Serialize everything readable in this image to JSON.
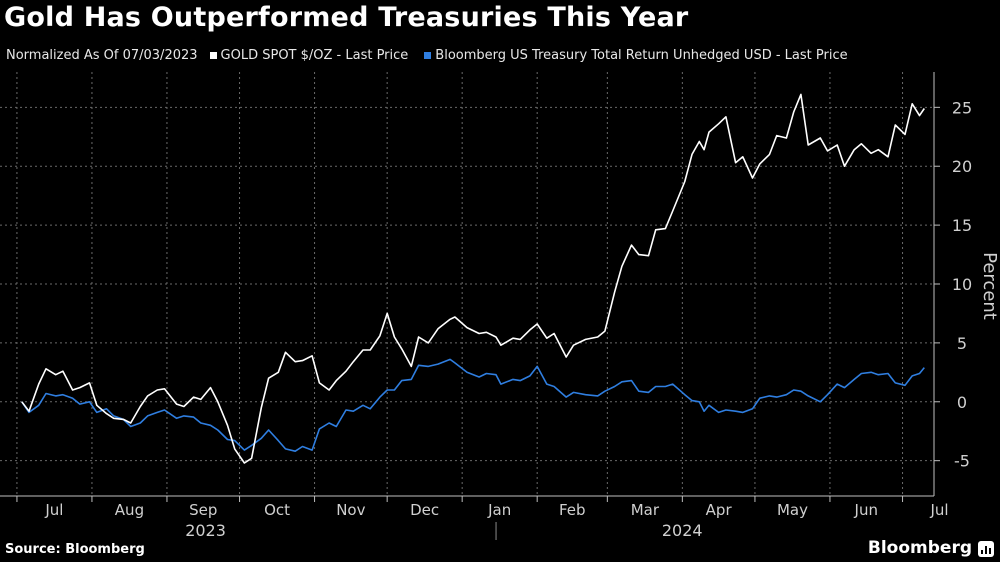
{
  "title": "Gold Has Outperformed Treasuries This Year",
  "legend": {
    "note": "Normalized As Of 07/03/2023",
    "gold_label": "GOLD SPOT $/OZ - Last Price",
    "treasury_label": "Bloomberg US Treasury Total Return Unhedged USD - Last Price"
  },
  "source": "Source: Bloomberg",
  "brand": "Bloomberg",
  "colors": {
    "background": "#000000",
    "gold": "#ffffff",
    "treasury": "#2f7ee0",
    "grid": "#6a6a6a",
    "axis_text": "#d0d0d0"
  },
  "chart_data": {
    "type": "line",
    "ylabel": "Percent",
    "ylim": [
      -8,
      28
    ],
    "yticks": [
      -5,
      0,
      5,
      10,
      15,
      20,
      25
    ],
    "grid": true,
    "x_range": [
      "2023-06-24",
      "2024-07-14"
    ],
    "month_ticks": [
      {
        "label": "Jul",
        "date": "2023-07-01"
      },
      {
        "label": "Aug",
        "date": "2023-08-01"
      },
      {
        "label": "Sep",
        "date": "2023-09-01"
      },
      {
        "label": "Oct",
        "date": "2023-10-01"
      },
      {
        "label": "Nov",
        "date": "2023-11-01"
      },
      {
        "label": "Dec",
        "date": "2023-12-01"
      },
      {
        "label": "Jan",
        "date": "2024-01-01"
      },
      {
        "label": "Feb",
        "date": "2024-02-01"
      },
      {
        "label": "Mar",
        "date": "2024-03-01"
      },
      {
        "label": "Apr",
        "date": "2024-04-01"
      },
      {
        "label": "May",
        "date": "2024-05-01"
      },
      {
        "label": "Jun",
        "date": "2024-06-01"
      },
      {
        "label": "Jul",
        "date": "2024-07-01"
      }
    ],
    "year_labels": [
      {
        "label": "2023",
        "date": "2023-10-01"
      },
      {
        "label": "2024",
        "date": "2024-04-15"
      }
    ],
    "series": [
      {
        "name": "GOLD SPOT $/OZ - Last Price",
        "color": "#ffffff",
        "points": [
          [
            "2023-07-03",
            0
          ],
          [
            "2023-07-06",
            -0.8
          ],
          [
            "2023-07-10",
            1.5
          ],
          [
            "2023-07-13",
            2.8
          ],
          [
            "2023-07-17",
            2.3
          ],
          [
            "2023-07-20",
            2.6
          ],
          [
            "2023-07-24",
            1.0
          ],
          [
            "2023-07-27",
            1.2
          ],
          [
            "2023-07-31",
            1.6
          ],
          [
            "2023-08-03",
            -0.3
          ],
          [
            "2023-08-07",
            -1.0
          ],
          [
            "2023-08-10",
            -1.4
          ],
          [
            "2023-08-14",
            -1.5
          ],
          [
            "2023-08-17",
            -1.8
          ],
          [
            "2023-08-21",
            -0.4
          ],
          [
            "2023-08-24",
            0.5
          ],
          [
            "2023-08-28",
            1.0
          ],
          [
            "2023-08-31",
            1.1
          ],
          [
            "2023-09-05",
            -0.2
          ],
          [
            "2023-09-08",
            -0.4
          ],
          [
            "2023-09-12",
            0.4
          ],
          [
            "2023-09-15",
            0.2
          ],
          [
            "2023-09-19",
            1.2
          ],
          [
            "2023-09-22",
            0.0
          ],
          [
            "2023-09-26",
            -2.0
          ],
          [
            "2023-09-29",
            -4.0
          ],
          [
            "2023-10-03",
            -5.2
          ],
          [
            "2023-10-06",
            -4.8
          ],
          [
            "2023-10-10",
            -0.5
          ],
          [
            "2023-10-13",
            2.0
          ],
          [
            "2023-10-17",
            2.5
          ],
          [
            "2023-10-20",
            4.2
          ],
          [
            "2023-10-24",
            3.4
          ],
          [
            "2023-10-27",
            3.5
          ],
          [
            "2023-10-31",
            3.9
          ],
          [
            "2023-11-03",
            1.6
          ],
          [
            "2023-11-07",
            1.0
          ],
          [
            "2023-11-10",
            1.8
          ],
          [
            "2023-11-14",
            2.6
          ],
          [
            "2023-11-17",
            3.4
          ],
          [
            "2023-11-21",
            4.4
          ],
          [
            "2023-11-24",
            4.4
          ],
          [
            "2023-11-28",
            5.6
          ],
          [
            "2023-12-01",
            7.5
          ],
          [
            "2023-12-04",
            5.5
          ],
          [
            "2023-12-07",
            4.5
          ],
          [
            "2023-12-11",
            3.0
          ],
          [
            "2023-12-14",
            5.5
          ],
          [
            "2023-12-18",
            5.0
          ],
          [
            "2023-12-22",
            6.2
          ],
          [
            "2023-12-27",
            7.0
          ],
          [
            "2023-12-29",
            7.2
          ],
          [
            "2024-01-03",
            6.3
          ],
          [
            "2024-01-08",
            5.8
          ],
          [
            "2024-01-11",
            5.9
          ],
          [
            "2024-01-15",
            5.5
          ],
          [
            "2024-01-17",
            4.8
          ],
          [
            "2024-01-22",
            5.4
          ],
          [
            "2024-01-25",
            5.3
          ],
          [
            "2024-01-29",
            6.1
          ],
          [
            "2024-02-01",
            6.6
          ],
          [
            "2024-02-05",
            5.4
          ],
          [
            "2024-02-08",
            5.8
          ],
          [
            "2024-02-13",
            3.8
          ],
          [
            "2024-02-16",
            4.8
          ],
          [
            "2024-02-21",
            5.3
          ],
          [
            "2024-02-26",
            5.5
          ],
          [
            "2024-02-29",
            6.0
          ],
          [
            "2024-03-04",
            9.3
          ],
          [
            "2024-03-07",
            11.5
          ],
          [
            "2024-03-11",
            13.3
          ],
          [
            "2024-03-14",
            12.5
          ],
          [
            "2024-03-18",
            12.4
          ],
          [
            "2024-03-21",
            14.6
          ],
          [
            "2024-03-25",
            14.7
          ],
          [
            "2024-03-28",
            16.2
          ],
          [
            "2024-04-02",
            18.7
          ],
          [
            "2024-04-05",
            21.0
          ],
          [
            "2024-04-08",
            22.1
          ],
          [
            "2024-04-10",
            21.4
          ],
          [
            "2024-04-12",
            22.9
          ],
          [
            "2024-04-16",
            23.6
          ],
          [
            "2024-04-19",
            24.2
          ],
          [
            "2024-04-23",
            20.3
          ],
          [
            "2024-04-26",
            20.8
          ],
          [
            "2024-04-30",
            19.0
          ],
          [
            "2024-05-03",
            20.2
          ],
          [
            "2024-05-07",
            21.0
          ],
          [
            "2024-05-10",
            22.6
          ],
          [
            "2024-05-14",
            22.4
          ],
          [
            "2024-05-17",
            24.6
          ],
          [
            "2024-05-20",
            26.1
          ],
          [
            "2024-05-23",
            21.8
          ],
          [
            "2024-05-28",
            22.4
          ],
          [
            "2024-05-31",
            21.3
          ],
          [
            "2024-06-04",
            21.8
          ],
          [
            "2024-06-07",
            20.0
          ],
          [
            "2024-06-11",
            21.4
          ],
          [
            "2024-06-14",
            21.9
          ],
          [
            "2024-06-18",
            21.1
          ],
          [
            "2024-06-21",
            21.4
          ],
          [
            "2024-06-25",
            20.8
          ],
          [
            "2024-06-28",
            23.5
          ],
          [
            "2024-07-02",
            22.7
          ],
          [
            "2024-07-05",
            25.3
          ],
          [
            "2024-07-08",
            24.3
          ],
          [
            "2024-07-10",
            24.9
          ]
        ]
      },
      {
        "name": "Bloomberg US Treasury Total Return Unhedged USD - Last Price",
        "color": "#2f7ee0",
        "points": [
          [
            "2023-07-03",
            0
          ],
          [
            "2023-07-06",
            -0.9
          ],
          [
            "2023-07-10",
            -0.3
          ],
          [
            "2023-07-13",
            0.7
          ],
          [
            "2023-07-17",
            0.5
          ],
          [
            "2023-07-20",
            0.6
          ],
          [
            "2023-07-24",
            0.3
          ],
          [
            "2023-07-27",
            -0.2
          ],
          [
            "2023-07-31",
            0.0
          ],
          [
            "2023-08-03",
            -0.9
          ],
          [
            "2023-08-07",
            -0.6
          ],
          [
            "2023-08-10",
            -1.2
          ],
          [
            "2023-08-14",
            -1.5
          ],
          [
            "2023-08-17",
            -2.1
          ],
          [
            "2023-08-21",
            -1.8
          ],
          [
            "2023-08-24",
            -1.2
          ],
          [
            "2023-08-28",
            -0.9
          ],
          [
            "2023-08-31",
            -0.7
          ],
          [
            "2023-09-05",
            -1.4
          ],
          [
            "2023-09-08",
            -1.2
          ],
          [
            "2023-09-12",
            -1.3
          ],
          [
            "2023-09-15",
            -1.8
          ],
          [
            "2023-09-19",
            -2.0
          ],
          [
            "2023-09-22",
            -2.4
          ],
          [
            "2023-09-26",
            -3.2
          ],
          [
            "2023-09-29",
            -3.3
          ],
          [
            "2023-10-03",
            -4.1
          ],
          [
            "2023-10-06",
            -3.7
          ],
          [
            "2023-10-10",
            -3.1
          ],
          [
            "2023-10-13",
            -2.4
          ],
          [
            "2023-10-17",
            -3.3
          ],
          [
            "2023-10-20",
            -4.0
          ],
          [
            "2023-10-24",
            -4.2
          ],
          [
            "2023-10-27",
            -3.8
          ],
          [
            "2023-10-31",
            -4.1
          ],
          [
            "2023-11-03",
            -2.3
          ],
          [
            "2023-11-07",
            -1.8
          ],
          [
            "2023-11-10",
            -2.1
          ],
          [
            "2023-11-14",
            -0.7
          ],
          [
            "2023-11-17",
            -0.8
          ],
          [
            "2023-11-21",
            -0.3
          ],
          [
            "2023-11-24",
            -0.6
          ],
          [
            "2023-11-28",
            0.4
          ],
          [
            "2023-12-01",
            1.0
          ],
          [
            "2023-12-04",
            1.0
          ],
          [
            "2023-12-07",
            1.8
          ],
          [
            "2023-12-11",
            1.9
          ],
          [
            "2023-12-14",
            3.1
          ],
          [
            "2023-12-18",
            3.0
          ],
          [
            "2023-12-22",
            3.2
          ],
          [
            "2023-12-27",
            3.6
          ],
          [
            "2023-12-29",
            3.3
          ],
          [
            "2024-01-03",
            2.5
          ],
          [
            "2024-01-08",
            2.1
          ],
          [
            "2024-01-11",
            2.4
          ],
          [
            "2024-01-15",
            2.3
          ],
          [
            "2024-01-17",
            1.5
          ],
          [
            "2024-01-22",
            1.9
          ],
          [
            "2024-01-25",
            1.8
          ],
          [
            "2024-01-29",
            2.2
          ],
          [
            "2024-02-01",
            3.0
          ],
          [
            "2024-02-05",
            1.5
          ],
          [
            "2024-02-08",
            1.3
          ],
          [
            "2024-02-13",
            0.4
          ],
          [
            "2024-02-16",
            0.8
          ],
          [
            "2024-02-21",
            0.6
          ],
          [
            "2024-02-26",
            0.5
          ],
          [
            "2024-02-29",
            0.9
          ],
          [
            "2024-03-04",
            1.3
          ],
          [
            "2024-03-07",
            1.7
          ],
          [
            "2024-03-11",
            1.8
          ],
          [
            "2024-03-14",
            0.9
          ],
          [
            "2024-03-18",
            0.8
          ],
          [
            "2024-03-21",
            1.3
          ],
          [
            "2024-03-25",
            1.3
          ],
          [
            "2024-03-28",
            1.5
          ],
          [
            "2024-04-02",
            0.6
          ],
          [
            "2024-04-05",
            0.1
          ],
          [
            "2024-04-08",
            0.0
          ],
          [
            "2024-04-10",
            -0.8
          ],
          [
            "2024-04-12",
            -0.3
          ],
          [
            "2024-04-16",
            -0.9
          ],
          [
            "2024-04-19",
            -0.7
          ],
          [
            "2024-04-23",
            -0.8
          ],
          [
            "2024-04-26",
            -0.9
          ],
          [
            "2024-04-30",
            -0.6
          ],
          [
            "2024-05-03",
            0.3
          ],
          [
            "2024-05-07",
            0.5
          ],
          [
            "2024-05-10",
            0.4
          ],
          [
            "2024-05-14",
            0.6
          ],
          [
            "2024-05-17",
            1.0
          ],
          [
            "2024-05-20",
            0.9
          ],
          [
            "2024-05-23",
            0.5
          ],
          [
            "2024-05-28",
            0.0
          ],
          [
            "2024-05-31",
            0.6
          ],
          [
            "2024-06-04",
            1.5
          ],
          [
            "2024-06-07",
            1.2
          ],
          [
            "2024-06-11",
            1.9
          ],
          [
            "2024-06-14",
            2.4
          ],
          [
            "2024-06-18",
            2.5
          ],
          [
            "2024-06-21",
            2.3
          ],
          [
            "2024-06-25",
            2.4
          ],
          [
            "2024-06-28",
            1.6
          ],
          [
            "2024-07-02",
            1.4
          ],
          [
            "2024-07-05",
            2.2
          ],
          [
            "2024-07-08",
            2.4
          ],
          [
            "2024-07-10",
            2.9
          ]
        ]
      }
    ]
  }
}
